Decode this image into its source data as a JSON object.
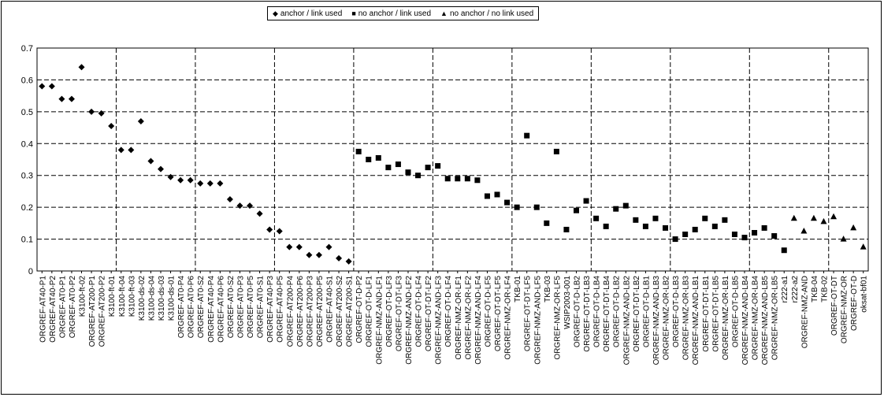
{
  "chart_data": {
    "type": "scatter",
    "title": "",
    "xlabel": "",
    "ylabel": "",
    "ylim": [
      0,
      0.7
    ],
    "y_ticks": [
      "0",
      "0.1",
      "0.2",
      "0.3",
      "0.4",
      "0.5",
      "0.6",
      "0.7"
    ],
    "grid": "dashed",
    "legend_placement": "top-center",
    "series": [
      {
        "name": "anchor / link used",
        "marker": "diamond"
      },
      {
        "name": "no anchor / link used",
        "marker": "square"
      },
      {
        "name": "no anchor / no link used",
        "marker": "triangle"
      }
    ],
    "categories": [
      "ORGREF-AT40-P1",
      "ORGREF-AT40-P2",
      "ORGREF-AT0-P1",
      "ORGREF-AT0-P2",
      "K3100-ft-02",
      "ORGREF-AT200-P1",
      "ORGREF-AT200-P2",
      "K3100-ft-01",
      "K3100-ft-04",
      "K3100-ft-03",
      "K3100-ds-02",
      "K3100-ds-04",
      "K3100-ds-03",
      "K3100-ds-01",
      "ORGREF-AT0-P4",
      "ORGREF-AT0-P6",
      "ORGREF-AT0-S2",
      "ORGREF-AT40-P4",
      "ORGREF-AT40-P6",
      "ORGREF-AT0-S2",
      "ORGREF-AT0-P3",
      "ORGREF-AT0-P5",
      "ORGREF-AT0-S1",
      "ORGREF-AT40-P3",
      "ORGREF-AT40-P5",
      "ORGREF-AT200-P4",
      "ORGREF-AT200-P6",
      "ORGREF-AT200-P3",
      "ORGREF-AT200-P5",
      "ORGREF-AT40-S1",
      "ORGREF-AT200-S2",
      "ORGREF-AT200-S1",
      "ORGREF-OT-D-P2",
      "ORGREF-OT-D-LF1",
      "ORGREF-NMZ-AND-LF1",
      "ORGREF-OT-D-LF3",
      "ORGREF-OT-DT-LF3",
      "ORGREF-NMZ-AND-LF2",
      "ORGREF-OT-D-LF4",
      "ORGREF-OT-DT-LF2",
      "ORGREF-NMZ-AND-LF3",
      "ORGREF-OT-D-LF4",
      "ORGREF-NMZ-OR-LF1",
      "ORGREF-NMZ-OR-LF2",
      "ORGREF-NMZ-AND-LF4",
      "ORGREF-OT-D-LF5",
      "ORGREF-OT-DT-LF5",
      "ORGREF-NMZ-OR-LF4",
      "TKB-01",
      "ORGREF-OT-DT-LF5",
      "ORGREF-NMZ-AND-LF5",
      "TKB-03",
      "ORGREF-NMZ-OR-LF5",
      "WSIP2003-001",
      "ORGREF-OT-D-LB2",
      "ORGREF-OT-DT-LB3",
      "ORGREF-OT-D-LB4",
      "ORGREF-OT-DT-LB4",
      "ORGREF-OT-D-LB2",
      "ORGREF-NMZ-AND-LB2",
      "ORGREF-OT-DT-LB2",
      "ORGREF-OT-D-LB1",
      "ORGREF-NMZ-AND-LB3",
      "ORGREF-NMZ-OR-LB2",
      "ORGREF-OT-D-LB3",
      "ORGREF-NMZ-OR-LB3",
      "ORGREF-NMZ-AND-LB1",
      "ORGREF-OT-DT-LB1",
      "ORGREF-OT-DT-LB5",
      "ORGREF-NMZ-OR-LB1",
      "ORGREF-OT-D-LB5",
      "ORGREF-NMZ-AND-LB4",
      "ORGREF-NMZ-OR-LB4",
      "ORGREF-NMZ-AND-LB5",
      "ORGREF-NMZ-OR-LB5",
      "r222-a1",
      "r222-a2",
      "ORGREF-NMZ-AND",
      "TKB-04",
      "TKB-02",
      "ORGREF-OT-DT",
      "ORGREF-NMZ-OR",
      "ORGREF-OT-D",
      "oksat-bf01"
    ],
    "points": [
      {
        "s": 0,
        "y": 0.58
      },
      {
        "s": 0,
        "y": 0.58
      },
      {
        "s": 0,
        "y": 0.54
      },
      {
        "s": 0,
        "y": 0.54
      },
      {
        "s": 0,
        "y": 0.64
      },
      {
        "s": 0,
        "y": 0.5
      },
      {
        "s": 0,
        "y": 0.495
      },
      {
        "s": 0,
        "y": 0.455
      },
      {
        "s": 0,
        "y": 0.38
      },
      {
        "s": 0,
        "y": 0.38
      },
      {
        "s": 0,
        "y": 0.47
      },
      {
        "s": 0,
        "y": 0.345
      },
      {
        "s": 0,
        "y": 0.32
      },
      {
        "s": 0,
        "y": 0.295
      },
      {
        "s": 0,
        "y": 0.285
      },
      {
        "s": 0,
        "y": 0.285
      },
      {
        "s": 0,
        "y": 0.275
      },
      {
        "s": 0,
        "y": 0.275
      },
      {
        "s": 0,
        "y": 0.275
      },
      {
        "s": 0,
        "y": 0.225
      },
      {
        "s": 0,
        "y": 0.205
      },
      {
        "s": 0,
        "y": 0.205
      },
      {
        "s": 0,
        "y": 0.18
      },
      {
        "s": 0,
        "y": 0.13
      },
      {
        "s": 0,
        "y": 0.125
      },
      {
        "s": 0,
        "y": 0.075
      },
      {
        "s": 0,
        "y": 0.075
      },
      {
        "s": 0,
        "y": 0.05
      },
      {
        "s": 0,
        "y": 0.05
      },
      {
        "s": 0,
        "y": 0.075
      },
      {
        "s": 0,
        "y": 0.04
      },
      {
        "s": 0,
        "y": 0.03
      },
      {
        "s": 1,
        "y": 0.375
      },
      {
        "s": 1,
        "y": 0.35
      },
      {
        "s": 1,
        "y": 0.355
      },
      {
        "s": 1,
        "y": 0.325
      },
      {
        "s": 1,
        "y": 0.335
      },
      {
        "s": 1,
        "y": 0.31
      },
      {
        "s": 1,
        "y": 0.3
      },
      {
        "s": 1,
        "y": 0.325
      },
      {
        "s": 1,
        "y": 0.33
      },
      {
        "s": 1,
        "y": 0.29
      },
      {
        "s": 1,
        "y": 0.29
      },
      {
        "s": 1,
        "y": 0.29
      },
      {
        "s": 1,
        "y": 0.285
      },
      {
        "s": 1,
        "y": 0.235
      },
      {
        "s": 1,
        "y": 0.24
      },
      {
        "s": 1,
        "y": 0.215
      },
      {
        "s": 1,
        "y": 0.2
      },
      {
        "s": 1,
        "y": 0.425
      },
      {
        "s": 1,
        "y": 0.2
      },
      {
        "s": 1,
        "y": 0.15
      },
      {
        "s": 1,
        "y": 0.375
      },
      {
        "s": 1,
        "y": 0.13
      },
      {
        "s": 1,
        "y": 0.19
      },
      {
        "s": 1,
        "y": 0.22
      },
      {
        "s": 1,
        "y": 0.165
      },
      {
        "s": 1,
        "y": 0.14
      },
      {
        "s": 1,
        "y": 0.195
      },
      {
        "s": 1,
        "y": 0.205
      },
      {
        "s": 1,
        "y": 0.16
      },
      {
        "s": 1,
        "y": 0.14
      },
      {
        "s": 1,
        "y": 0.165
      },
      {
        "s": 1,
        "y": 0.135
      },
      {
        "s": 1,
        "y": 0.1
      },
      {
        "s": 1,
        "y": 0.115
      },
      {
        "s": 1,
        "y": 0.13
      },
      {
        "s": 1,
        "y": 0.165
      },
      {
        "s": 1,
        "y": 0.14
      },
      {
        "s": 1,
        "y": 0.16
      },
      {
        "s": 1,
        "y": 0.115
      },
      {
        "s": 1,
        "y": 0.105
      },
      {
        "s": 1,
        "y": 0.12
      },
      {
        "s": 1,
        "y": 0.135
      },
      {
        "s": 1,
        "y": 0.11
      },
      {
        "s": 1,
        "y": 0.065
      },
      {
        "s": 2,
        "y": 0.165
      },
      {
        "s": 2,
        "y": 0.125
      },
      {
        "s": 2,
        "y": 0.165
      },
      {
        "s": 2,
        "y": 0.155
      },
      {
        "s": 2,
        "y": 0.17
      },
      {
        "s": 2,
        "y": 0.1
      },
      {
        "s": 2,
        "y": 0.135
      },
      {
        "s": 2,
        "y": 0.075
      }
    ]
  }
}
